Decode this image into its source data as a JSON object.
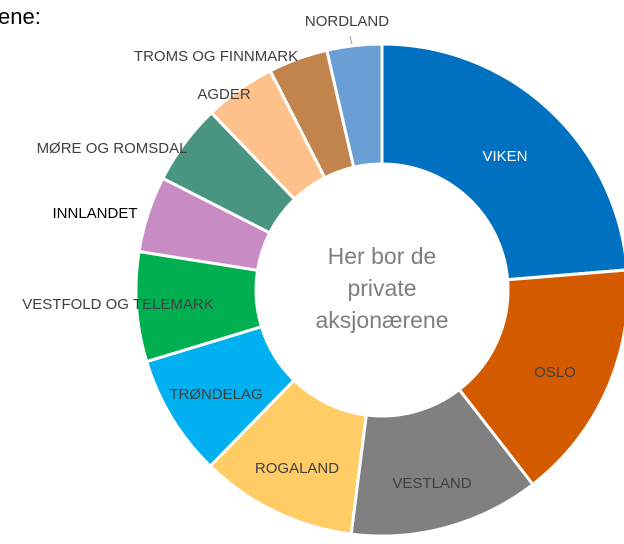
{
  "chart_data": {
    "type": "donut",
    "title": "ene:",
    "center_label": [
      "Her bor de",
      "private",
      "aksjonærene"
    ],
    "categories": [
      "VIKEN",
      "OSLO",
      "VESTLAND",
      "ROGALAND",
      "TRØNDELAG",
      "VESTFOLD OG TELEMARK",
      "INNLANDET",
      "MØRE OG ROMSDAL",
      "AGDER",
      "TROMS OG FINNMARK",
      "NORDLAND"
    ],
    "values": [
      23.7,
      15.8,
      12.5,
      10.3,
      8,
      7.2,
      5,
      5.3,
      4.7,
      3.9,
      3.6
    ],
    "colors": [
      "#0070c0",
      "#d45a00",
      "#808080",
      "#ffcc66",
      "#00b0f0",
      "#00b050",
      "#c98bc4",
      "#4a9582",
      "#ffc18c",
      "#c0844c",
      "#6a9fd5"
    ]
  }
}
